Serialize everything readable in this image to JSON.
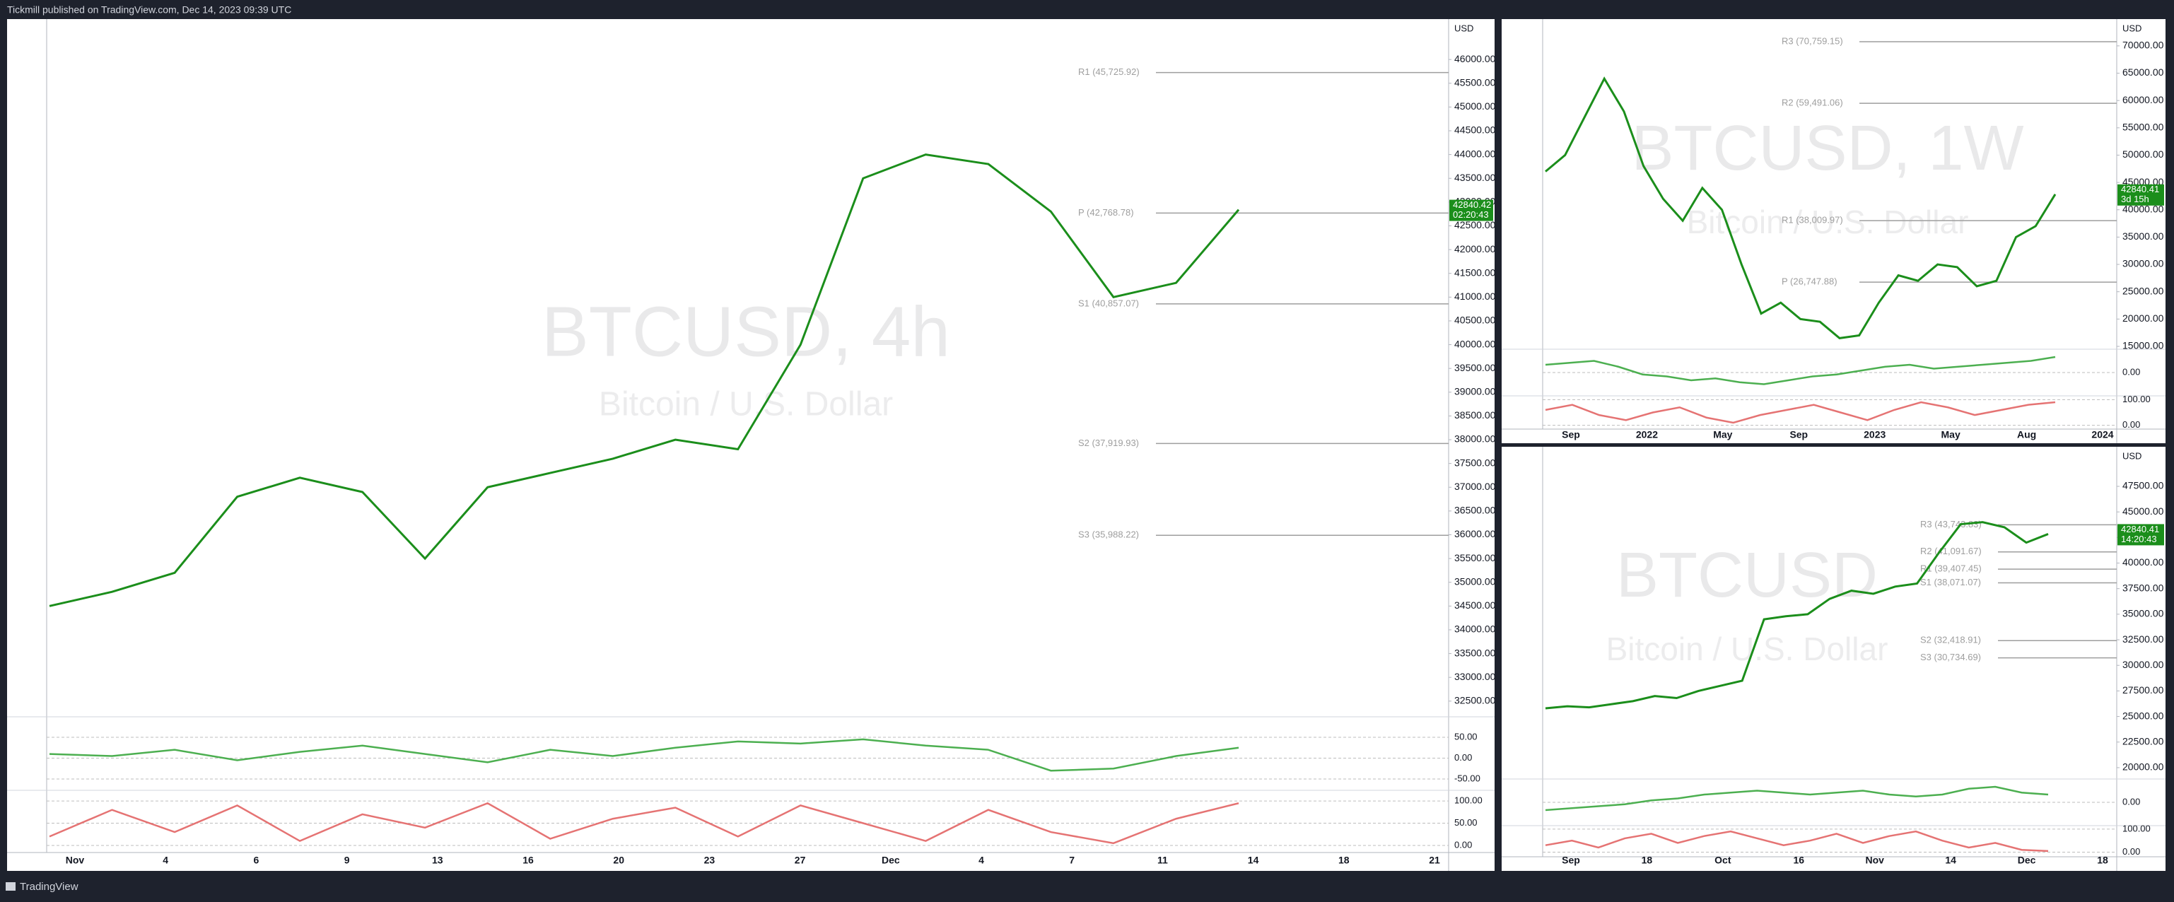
{
  "header": {
    "title": "Tickmill published on TradingView.com, Dec 14, 2023 09:39 UTC"
  },
  "footer": {
    "brand": "TradingView"
  },
  "main_chart": {
    "currency": "USD",
    "watermark": "BTCUSD, 4h",
    "watermark_subtitle": "Bitcoin / U.S. Dollar",
    "ylim": [
      32170,
      46850
    ],
    "yticks": [
      {
        "value": 46000,
        "label": "46000.00"
      },
      {
        "value": 45500,
        "label": "45500.00"
      },
      {
        "value": 45000,
        "label": "45000.00"
      },
      {
        "value": 44500,
        "label": "44500.00"
      },
      {
        "value": 44000,
        "label": "44000.00"
      },
      {
        "value": 43500,
        "label": "43500.00"
      },
      {
        "value": 43000,
        "label": "43000.00"
      },
      {
        "value": 42500,
        "label": "42500.00"
      },
      {
        "value": 42000,
        "label": "42000.00"
      },
      {
        "value": 41500,
        "label": "41500.00"
      },
      {
        "value": 41000,
        "label": "41000.00"
      },
      {
        "value": 40500,
        "label": "40500.00"
      },
      {
        "value": 40000,
        "label": "40000.00"
      },
      {
        "value": 39500,
        "label": "39500.00"
      },
      {
        "value": 39000,
        "label": "39000.00"
      },
      {
        "value": 38500,
        "label": "38500.00"
      },
      {
        "value": 38000,
        "label": "38000.00"
      },
      {
        "value": 37500,
        "label": "37500.00"
      },
      {
        "value": 37000,
        "label": "37000.00"
      },
      {
        "value": 36500,
        "label": "36500.00"
      },
      {
        "value": 36000,
        "label": "36000.00"
      },
      {
        "value": 35500,
        "label": "35500.00"
      },
      {
        "value": 35000,
        "label": "35000.00"
      },
      {
        "value": 34500,
        "label": "34500.00"
      },
      {
        "value": 34000,
        "label": "34000.00"
      },
      {
        "value": 33500,
        "label": "33500.00"
      },
      {
        "value": 33000,
        "label": "33000.00"
      },
      {
        "value": 32500,
        "label": "32500.00"
      }
    ],
    "x_labels": [
      "Nov",
      "4",
      "6",
      "9",
      "13",
      "16",
      "20",
      "23",
      "27",
      "Dec",
      "4",
      "7",
      "11",
      "14",
      "18",
      "21"
    ],
    "pivots": [
      {
        "label": "R1 (45,725.92)",
        "value": 45725.92
      },
      {
        "label": "P (42,768.78)",
        "value": 42768.78
      },
      {
        "label": "S1 (40,857.07)",
        "value": 40857.07
      },
      {
        "label": "S2 (37,919.93)",
        "value": 37919.93
      },
      {
        "label": "S3 (35,988.22)",
        "value": 35988.22
      }
    ],
    "last_price": {
      "value": 42840.42,
      "label": "42840.42",
      "timer": "02:20:43"
    },
    "price": [
      34500,
      34800,
      35200,
      36800,
      37200,
      36900,
      35500,
      37000,
      37300,
      37600,
      38000,
      37800,
      40000,
      43500,
      44000,
      43800,
      42800,
      41000,
      41300,
      42840
    ],
    "oscillators": [
      {
        "ylim": [
          -77,
          99
        ],
        "yticks": [
          {
            "value": 50,
            "label": "50.00"
          },
          {
            "value": 0,
            "label": "0.00"
          },
          {
            "value": -50,
            "label": "-50.00"
          }
        ],
        "values": [
          10,
          5,
          20,
          -5,
          15,
          30,
          10,
          -10,
          20,
          5,
          25,
          40,
          35,
          45,
          30,
          20,
          -30,
          -25,
          5,
          25
        ]
      },
      {
        "ylim": [
          -16,
          124
        ],
        "yticks": [
          {
            "value": 100,
            "label": "100.00"
          },
          {
            "value": 50,
            "label": "50.00"
          },
          {
            "value": 0,
            "label": "0.00"
          }
        ],
        "values": [
          20,
          80,
          30,
          90,
          10,
          70,
          40,
          95,
          15,
          60,
          85,
          20,
          90,
          50,
          10,
          80,
          30,
          5,
          60,
          95
        ]
      }
    ]
  },
  "weekly_chart": {
    "currency": "USD",
    "watermark": "BTCUSD, 1W",
    "watermark_subtitle": "Bitcoin / U.S. Dollar",
    "ylim": [
      14480,
      74900
    ],
    "yticks": [
      {
        "value": 70000,
        "label": "70000.00"
      },
      {
        "value": 65000,
        "label": "65000.00"
      },
      {
        "value": 60000,
        "label": "60000.00"
      },
      {
        "value": 55000,
        "label": "55000.00"
      },
      {
        "value": 50000,
        "label": "50000.00"
      },
      {
        "value": 45000,
        "label": "45000.00"
      },
      {
        "value": 40000,
        "label": "40000.00"
      },
      {
        "value": 35000,
        "label": "35000.00"
      },
      {
        "value": 30000,
        "label": "30000.00"
      },
      {
        "value": 25000,
        "label": "25000.00"
      },
      {
        "value": 20000,
        "label": "20000.00"
      },
      {
        "value": 15000,
        "label": "15000.00"
      }
    ],
    "x_labels": [
      "Sep",
      "2022",
      "May",
      "Sep",
      "2023",
      "May",
      "Aug",
      "2024"
    ],
    "pivots": [
      {
        "label": "R3 (70,759.15)",
        "value": 70759.15
      },
      {
        "label": "R2 (59,491.06)",
        "value": 59491.06
      },
      {
        "label": "R1 (38,009.97)",
        "value": 38009.97
      },
      {
        "label": "P (26,747.88)",
        "value": 26747.88
      }
    ],
    "last_price": {
      "value": 42840.41,
      "label": "42840.41",
      "timer": "3d 15h"
    },
    "price": [
      47000,
      50000,
      57000,
      64000,
      58000,
      48000,
      42000,
      38000,
      44000,
      40000,
      30000,
      21000,
      23000,
      20000,
      19500,
      16500,
      17000,
      23000,
      28000,
      27000,
      30000,
      29500,
      26000,
      27000,
      35000,
      37000,
      42840
    ],
    "oscillators": [
      {
        "ylim": [
          -60,
          60
        ],
        "yticks": [
          {
            "value": 0,
            "label": "0.00"
          }
        ],
        "values": [
          20,
          25,
          30,
          15,
          -5,
          -10,
          -20,
          -15,
          -25,
          -30,
          -20,
          -10,
          -5,
          5,
          15,
          20,
          10,
          15,
          20,
          25,
          30,
          40
        ]
      },
      {
        "ylim": [
          -15,
          115
        ],
        "yticks": [
          {
            "value": 100,
            "label": "100.00"
          },
          {
            "value": 0,
            "label": "0.00"
          }
        ],
        "values": [
          60,
          80,
          40,
          20,
          50,
          70,
          30,
          10,
          40,
          60,
          80,
          50,
          20,
          60,
          90,
          70,
          40,
          60,
          80,
          90
        ]
      }
    ]
  },
  "daily_chart": {
    "currency": "USD",
    "watermark": "BTCUSD",
    "watermark_subtitle": "Bitcoin / U.S. Dollar",
    "ylim": [
      18890,
      51370
    ],
    "yticks": [
      {
        "value": 47500,
        "label": "47500.00"
      },
      {
        "value": 45000,
        "label": "45000.00"
      },
      {
        "value": 42500,
        "label": "42500.00"
      },
      {
        "value": 40000,
        "label": "40000.00"
      },
      {
        "value": 37500,
        "label": "37500.00"
      },
      {
        "value": 35000,
        "label": "35000.00"
      },
      {
        "value": 32500,
        "label": "32500.00"
      },
      {
        "value": 30000,
        "label": "30000.00"
      },
      {
        "value": 27500,
        "label": "27500.00"
      },
      {
        "value": 25000,
        "label": "25000.00"
      },
      {
        "value": 22500,
        "label": "22500.00"
      },
      {
        "value": 20000,
        "label": "20000.00"
      }
    ],
    "x_labels": [
      "Sep",
      "18",
      "Oct",
      "16",
      "Nov",
      "14",
      "Dec",
      "18"
    ],
    "pivots": [
      {
        "label": "R3 (43,743.83)",
        "value": 43743.83
      },
      {
        "label": "R2 (41,091.67)",
        "value": 41091.67
      },
      {
        "label": "R1 (39,407.45)",
        "value": 39407.45
      },
      {
        "label": "S1 (38,071.07)",
        "value": 38071.07
      },
      {
        "label": "S2 (32,418.91)",
        "value": 32418.91
      },
      {
        "label": "S3 (30,734.69)",
        "value": 30734.69
      }
    ],
    "last_price": {
      "value": 42840.41,
      "label": "42840.41",
      "timer": "14:20:43"
    },
    "price": [
      25800,
      26000,
      25900,
      26200,
      26500,
      27000,
      26800,
      27500,
      28000,
      28500,
      34500,
      34800,
      35000,
      36500,
      37300,
      37000,
      37700,
      38000,
      41000,
      43800,
      44000,
      43500,
      42000,
      42840
    ],
    "oscillators": [
      {
        "ylim": [
          -60,
          60
        ],
        "yticks": [
          {
            "value": 0,
            "label": "0.00"
          }
        ],
        "values": [
          -20,
          -15,
          -10,
          -5,
          5,
          10,
          20,
          25,
          30,
          25,
          20,
          25,
          30,
          20,
          15,
          20,
          35,
          40,
          25,
          20
        ]
      },
      {
        "ylim": [
          -20,
          115
        ],
        "yticks": [
          {
            "value": 100,
            "label": "100.00"
          },
          {
            "value": 0,
            "label": "0.00"
          }
        ],
        "values": [
          30,
          50,
          20,
          60,
          80,
          40,
          70,
          90,
          60,
          30,
          50,
          80,
          40,
          70,
          90,
          50,
          20,
          40,
          10,
          5
        ]
      }
    ]
  }
}
